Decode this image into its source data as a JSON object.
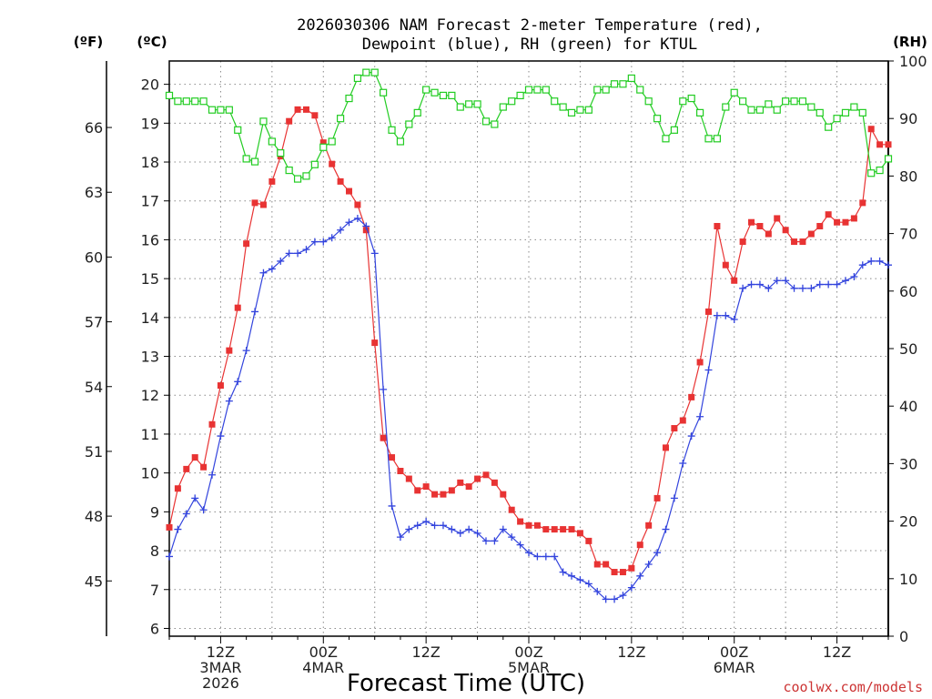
{
  "chart_data": {
    "type": "line",
    "title_line1": "2026030306 NAM Forecast 2-meter Temperature (red),",
    "title_line2": "Dewpoint (blue), RH (green) for KTUL",
    "unit_f": "(ºF)",
    "unit_c": "(ºC)",
    "unit_rh": "(RH)",
    "xlabel": "Forecast Time (UTC)",
    "credit": "coolwx.com/models",
    "ylim_c": [
      5.8,
      20.6
    ],
    "ylim_rh": [
      0,
      100
    ],
    "xlim_hours": [
      0,
      84
    ],
    "celsius_ticks": [
      "6",
      "7",
      "8",
      "9",
      "10",
      "11",
      "12",
      "13",
      "14",
      "15",
      "16",
      "17",
      "18",
      "19",
      "20"
    ],
    "fahrenheit_ticks": [
      "45",
      "48",
      "51",
      "54",
      "57",
      "60",
      "63",
      "66"
    ],
    "rh_ticks": [
      "0",
      "10",
      "20",
      "30",
      "40",
      "50",
      "60",
      "70",
      "80",
      "90",
      "100"
    ],
    "grid": true,
    "x_ticks": [
      {
        "hour": 6,
        "lines": [
          "12Z",
          "3MAR",
          "2026"
        ]
      },
      {
        "hour": 18,
        "lines": [
          "00Z",
          "4MAR"
        ]
      },
      {
        "hour": 30,
        "lines": [
          "12Z"
        ]
      },
      {
        "hour": 42,
        "lines": [
          "00Z",
          "5MAR"
        ]
      },
      {
        "hour": 54,
        "lines": [
          "12Z"
        ]
      },
      {
        "hour": 66,
        "lines": [
          "00Z",
          "6MAR"
        ]
      },
      {
        "hour": 78,
        "lines": [
          "12Z"
        ]
      }
    ],
    "series": [
      {
        "name": "Temperature",
        "color": "#e83333",
        "marker": "square-filled",
        "axis": "celsius",
        "x": [
          0,
          1,
          2,
          3,
          4,
          5,
          6,
          7,
          8,
          9,
          10,
          11,
          12,
          13,
          14,
          15,
          16,
          17,
          18,
          19,
          20,
          21,
          22,
          23,
          24,
          25,
          26,
          27,
          28,
          29,
          30,
          31,
          32,
          33,
          34,
          35,
          36,
          37,
          38,
          39,
          40,
          41,
          42,
          43,
          44,
          45,
          46,
          47,
          48,
          49,
          50,
          51,
          52,
          53,
          54,
          55,
          56,
          57,
          58,
          59,
          60,
          61,
          62,
          63,
          64,
          65,
          66,
          67,
          68,
          69,
          70,
          71,
          72,
          73,
          74,
          75,
          76,
          77,
          78,
          79,
          80,
          81,
          82,
          83,
          84
        ],
        "values": [
          8.6,
          9.6,
          10.1,
          10.4,
          10.15,
          11.25,
          12.25,
          13.15,
          14.25,
          15.9,
          16.95,
          16.9,
          17.5,
          18.15,
          19.05,
          19.35,
          19.35,
          19.2,
          18.5,
          17.95,
          17.5,
          17.25,
          16.9,
          16.25,
          13.35,
          10.9,
          10.4,
          10.05,
          9.85,
          9.55,
          9.65,
          9.45,
          9.45,
          9.55,
          9.75,
          9.65,
          9.85,
          9.95,
          9.75,
          9.45,
          9.05,
          8.75,
          8.65,
          8.65,
          8.55,
          8.55,
          8.55,
          8.55,
          8.45,
          8.25,
          7.65,
          7.65,
          7.45,
          7.45,
          7.55,
          8.15,
          8.65,
          9.35,
          10.65,
          11.15,
          11.35,
          11.95,
          12.85,
          14.15,
          16.35,
          15.35,
          14.95,
          15.95,
          16.45,
          16.35,
          16.15,
          16.55,
          16.25,
          15.95,
          15.95,
          16.15,
          16.35,
          16.65,
          16.45,
          16.45,
          16.55,
          16.95,
          18.85,
          18.45,
          18.45
        ]
      },
      {
        "name": "Dewpoint",
        "color": "#3344dd",
        "marker": "plus",
        "axis": "celsius",
        "x": [
          0,
          1,
          2,
          3,
          4,
          5,
          6,
          7,
          8,
          9,
          10,
          11,
          12,
          13,
          14,
          15,
          16,
          17,
          18,
          19,
          20,
          21,
          22,
          23,
          24,
          25,
          26,
          27,
          28,
          29,
          30,
          31,
          32,
          33,
          34,
          35,
          36,
          37,
          38,
          39,
          40,
          41,
          42,
          43,
          44,
          45,
          46,
          47,
          48,
          49,
          50,
          51,
          52,
          53,
          54,
          55,
          56,
          57,
          58,
          59,
          60,
          61,
          62,
          63,
          64,
          65,
          66,
          67,
          68,
          69,
          70,
          71,
          72,
          73,
          74,
          75,
          76,
          77,
          78,
          79,
          80,
          81,
          82,
          83,
          84
        ],
        "values": [
          7.85,
          8.55,
          8.95,
          9.35,
          9.05,
          9.95,
          10.95,
          11.85,
          12.35,
          13.15,
          14.15,
          15.15,
          15.25,
          15.45,
          15.65,
          15.65,
          15.75,
          15.95,
          15.95,
          16.05,
          16.25,
          16.45,
          16.55,
          16.35,
          15.65,
          12.15,
          9.15,
          8.35,
          8.55,
          8.65,
          8.75,
          8.65,
          8.65,
          8.55,
          8.45,
          8.55,
          8.45,
          8.25,
          8.25,
          8.55,
          8.35,
          8.15,
          7.95,
          7.85,
          7.85,
          7.85,
          7.45,
          7.35,
          7.25,
          7.15,
          6.95,
          6.75,
          6.75,
          6.85,
          7.05,
          7.35,
          7.65,
          7.95,
          8.55,
          9.35,
          10.25,
          10.95,
          11.45,
          12.65,
          14.05,
          14.05,
          13.95,
          14.75,
          14.85,
          14.85,
          14.75,
          14.95,
          14.95,
          14.75,
          14.75,
          14.75,
          14.85,
          14.85,
          14.85,
          14.95,
          15.05,
          15.35,
          15.45,
          15.45,
          15.35
        ]
      },
      {
        "name": "RH",
        "color": "#22cc22",
        "marker": "square-open",
        "axis": "rh",
        "x": [
          0,
          1,
          2,
          3,
          4,
          5,
          6,
          7,
          8,
          9,
          10,
          11,
          12,
          13,
          14,
          15,
          16,
          17,
          18,
          19,
          20,
          21,
          22,
          23,
          24,
          25,
          26,
          27,
          28,
          29,
          30,
          31,
          32,
          33,
          34,
          35,
          36,
          37,
          38,
          39,
          40,
          41,
          42,
          43,
          44,
          45,
          46,
          47,
          48,
          49,
          50,
          51,
          52,
          53,
          54,
          55,
          56,
          57,
          58,
          59,
          60,
          61,
          62,
          63,
          64,
          65,
          66,
          67,
          68,
          69,
          70,
          71,
          72,
          73,
          74,
          75,
          76,
          77,
          78,
          79,
          80,
          81,
          82,
          83,
          84
        ],
        "values": [
          94,
          93,
          93,
          93,
          93,
          91.5,
          91.5,
          91.5,
          88,
          83,
          82.5,
          89.5,
          86,
          84,
          81,
          79.5,
          80,
          82,
          85,
          86,
          90,
          93.5,
          97,
          98,
          98,
          94.5,
          88,
          86,
          89,
          91,
          95,
          94.5,
          94,
          94,
          92,
          92.5,
          92.5,
          89.5,
          89,
          92,
          93,
          94,
          95,
          95,
          95,
          93,
          92,
          91,
          91.5,
          91.5,
          95,
          95,
          96,
          96,
          97,
          95,
          93,
          90,
          86.5,
          88,
          93,
          93.5,
          91,
          86.5,
          86.5,
          92,
          94.5,
          93,
          91.5,
          91.5,
          92.5,
          91.5,
          93,
          93,
          93,
          92,
          91,
          88.5,
          90,
          91,
          92,
          91,
          80.5,
          81,
          83
        ]
      }
    ]
  }
}
